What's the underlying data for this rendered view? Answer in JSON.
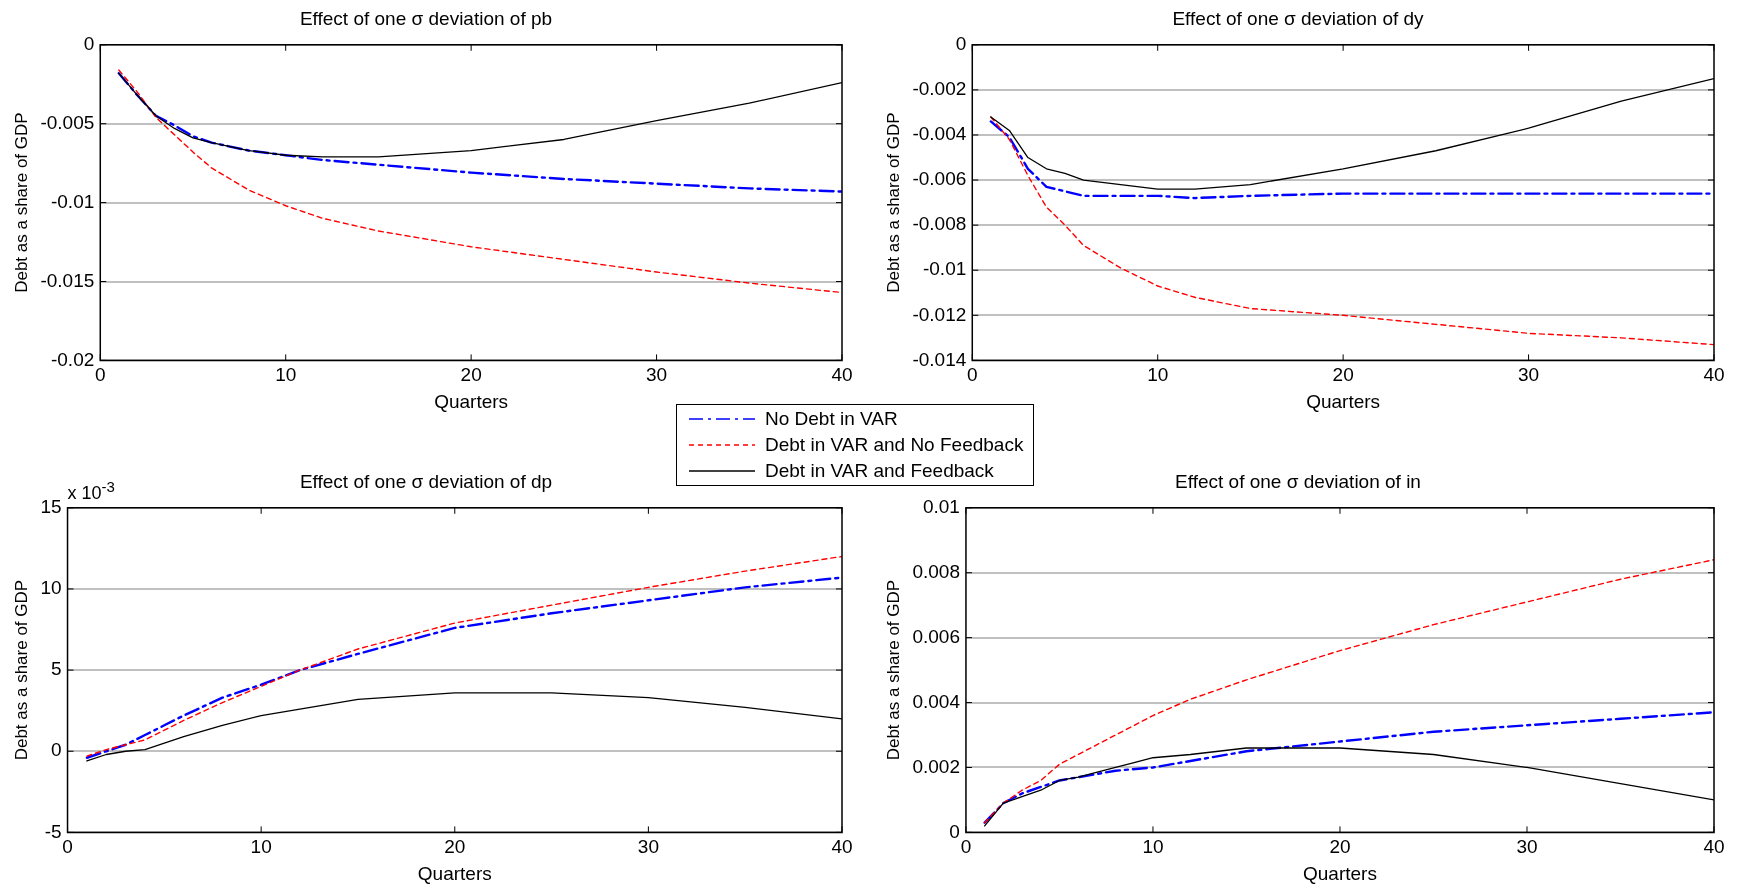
{
  "chart_data": [
    {
      "type": "line",
      "title": "Effect of one σ deviation of pb",
      "xlabel": "Quarters",
      "ylabel": "Debt as a share of GDP",
      "x": [
        1,
        2,
        3,
        4,
        5,
        6,
        8,
        10,
        12,
        15,
        20,
        25,
        30,
        35,
        40
      ],
      "xlim": [
        0,
        40
      ],
      "xticks": [
        0,
        10,
        20,
        30,
        40
      ],
      "ylim": [
        -0.02,
        0
      ],
      "yticks": [
        -0.02,
        -0.015,
        -0.01,
        -0.005,
        0
      ],
      "grid": "y",
      "legend": "bottom right",
      "series": [
        {
          "name": "No Debt in VAR",
          "color": "#0000ff",
          "line_style": "dashed",
          "values": [
            -0.0018,
            -0.0032,
            -0.0045,
            -0.0051,
            -0.0058,
            -0.0062,
            -0.0067,
            -0.007,
            -0.0073,
            -0.0076,
            -0.0081,
            -0.0085,
            -0.0088,
            -0.0091,
            -0.0093
          ]
        },
        {
          "name": "Debt in VAR and No Feedback",
          "color": "#ff0000",
          "line_style": "dotted",
          "values": [
            -0.0016,
            -0.003,
            -0.0046,
            -0.0057,
            -0.0068,
            -0.0078,
            -0.0092,
            -0.0102,
            -0.011,
            -0.0118,
            -0.0128,
            -0.0136,
            -0.0144,
            -0.0151,
            -0.0157
          ]
        },
        {
          "name": "Debt in VAR and Feedback",
          "color": "#000000",
          "line_style": "solid",
          "values": [
            -0.0018,
            -0.0032,
            -0.0045,
            -0.0053,
            -0.0059,
            -0.0062,
            -0.0067,
            -0.007,
            -0.0071,
            -0.0071,
            -0.0067,
            -0.006,
            -0.0048,
            -0.0037,
            -0.0024
          ]
        }
      ]
    },
    {
      "type": "line",
      "title": "Effect of one σ deviation of dy",
      "xlabel": "Quarters",
      "ylabel": "Debt as a share of GDP",
      "x": [
        1,
        2,
        3,
        4,
        5,
        6,
        8,
        10,
        12,
        15,
        20,
        25,
        30,
        35,
        40
      ],
      "xlim": [
        0,
        40
      ],
      "xticks": [
        0,
        10,
        20,
        30,
        40
      ],
      "ylim": [
        -0.014,
        0
      ],
      "yticks": [
        -0.014,
        -0.012,
        -0.01,
        -0.008,
        -0.006,
        -0.004,
        -0.002,
        0
      ],
      "grid": "y",
      "series": [
        {
          "color": "#0000ff",
          "line_style": "dashed",
          "values": [
            -0.0034,
            -0.0041,
            -0.0055,
            -0.0063,
            -0.0065,
            -0.0067,
            -0.0067,
            -0.0067,
            -0.0068,
            -0.0067,
            -0.0066,
            -0.0066,
            -0.0066,
            -0.0066,
            -0.0066
          ]
        },
        {
          "color": "#ff0000",
          "line_style": "dotted",
          "values": [
            -0.0032,
            -0.0042,
            -0.0058,
            -0.0072,
            -0.008,
            -0.0089,
            -0.0099,
            -0.0107,
            -0.0112,
            -0.0117,
            -0.012,
            -0.0124,
            -0.0128,
            -0.013,
            -0.0133
          ]
        },
        {
          "color": "#000000",
          "line_style": "solid",
          "values": [
            -0.0032,
            -0.0038,
            -0.005,
            -0.0055,
            -0.0057,
            -0.006,
            -0.0062,
            -0.0064,
            -0.0064,
            -0.0062,
            -0.0055,
            -0.0047,
            -0.0037,
            -0.0025,
            -0.0015
          ]
        }
      ]
    },
    {
      "type": "line",
      "title": "Effect of one σ deviation of dp",
      "xlabel": "Quarters",
      "ylabel": "Debt as a share of GDP",
      "annotations": [
        "x 10$^{-3}$"
      ],
      "x": [
        1,
        2,
        3,
        4,
        5,
        6,
        8,
        10,
        12,
        15,
        20,
        25,
        30,
        35,
        40
      ],
      "xlim": [
        0,
        40
      ],
      "xticks": [
        0,
        10,
        20,
        30,
        40
      ],
      "ylim": [
        -5,
        15
      ],
      "yticks": [
        -5,
        0,
        5,
        10,
        15
      ],
      "grid": "y",
      "series": [
        {
          "color": "#0000ff",
          "line_style": "dashed",
          "values": [
            -0.4,
            0,
            0.4,
            1.0,
            1.6,
            2.2,
            3.3,
            4.1,
            5.0,
            6.0,
            7.6,
            8.5,
            9.3,
            10.1,
            10.7
          ]
        },
        {
          "color": "#ff0000",
          "line_style": "dotted",
          "values": [
            -0.3,
            0.1,
            0.4,
            0.7,
            1.3,
            1.9,
            3.0,
            4.0,
            5.0,
            6.3,
            7.9,
            9.0,
            10.1,
            11.1,
            12.0
          ]
        },
        {
          "color": "#000000",
          "line_style": "solid",
          "values": [
            -0.6,
            -0.2,
            0,
            0.1,
            0.5,
            0.9,
            1.6,
            2.2,
            2.6,
            3.2,
            3.6,
            3.6,
            3.3,
            2.7,
            2.0
          ]
        }
      ]
    },
    {
      "type": "line",
      "title": "Effect of one σ deviation of in",
      "xlabel": "Quarters",
      "ylabel": "Debt as a share of GDP",
      "x": [
        1,
        2,
        3,
        4,
        5,
        6,
        8,
        10,
        12,
        15,
        20,
        25,
        30,
        35,
        40
      ],
      "xlim": [
        0,
        40
      ],
      "xticks": [
        0,
        10,
        20,
        30,
        40
      ],
      "ylim": [
        0,
        0.01
      ],
      "yticks": [
        0,
        0.002,
        0.004,
        0.006,
        0.008,
        0.01
      ],
      "grid": "y",
      "series": [
        {
          "color": "#0000ff",
          "line_style": "dashed",
          "values": [
            0.0003,
            0.0009,
            0.0012,
            0.0014,
            0.0016,
            0.0017,
            0.0019,
            0.002,
            0.0022,
            0.0025,
            0.0028,
            0.0031,
            0.0033,
            0.0035,
            0.0037
          ]
        },
        {
          "color": "#ff0000",
          "line_style": "dotted",
          "values": [
            0.0003,
            0.0009,
            0.0013,
            0.0016,
            0.0021,
            0.0024,
            0.003,
            0.0036,
            0.0041,
            0.0047,
            0.0056,
            0.0064,
            0.0071,
            0.0078,
            0.0084
          ]
        },
        {
          "color": "#000000",
          "line_style": "solid",
          "values": [
            0.0002,
            0.0009,
            0.0011,
            0.0013,
            0.0016,
            0.0017,
            0.002,
            0.0023,
            0.0024,
            0.0026,
            0.0026,
            0.0024,
            0.002,
            0.0015,
            0.001
          ]
        }
      ]
    }
  ]
}
